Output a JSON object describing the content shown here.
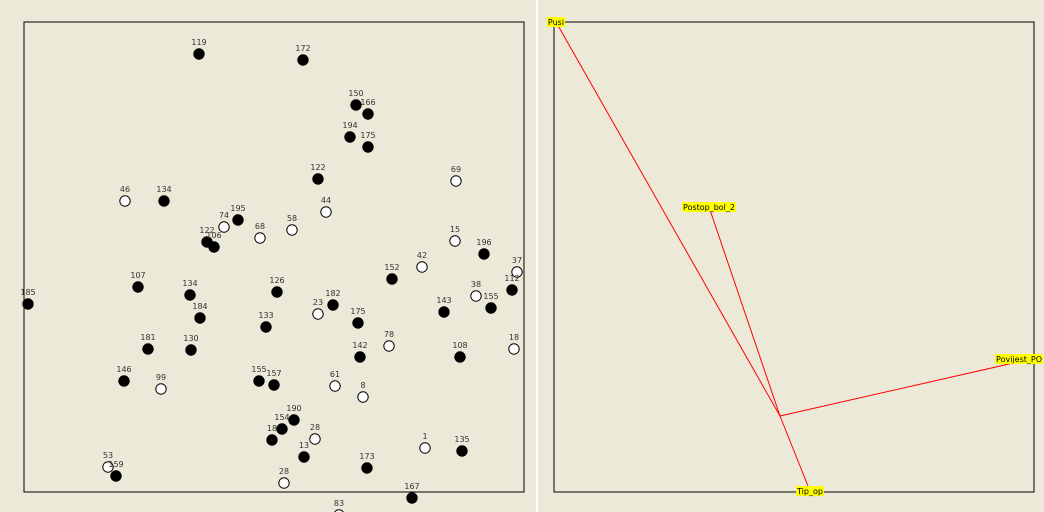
{
  "colors": {
    "panel_bg": "#ece9d8",
    "filled_point": "#000000",
    "open_point": "#ffffff",
    "vector": "#ff0000",
    "label_highlight": "#ffff00"
  },
  "chart_data": [
    {
      "type": "scatter",
      "title": "",
      "xlabel": "",
      "ylabel": "",
      "grid": false,
      "xlim": [
        0,
        500
      ],
      "ylim": [
        0,
        470
      ],
      "groups": {
        "filled": "black filled circle",
        "open": "white open circle"
      },
      "points": [
        {
          "label": "119",
          "x": 175,
          "y": 438,
          "g": "filled"
        },
        {
          "label": "172",
          "x": 279,
          "y": 432,
          "g": "filled"
        },
        {
          "label": "150",
          "x": 332,
          "y": 387,
          "g": "filled"
        },
        {
          "label": "166",
          "x": 344,
          "y": 378,
          "g": "filled"
        },
        {
          "label": "194",
          "x": 326,
          "y": 355,
          "g": "filled"
        },
        {
          "label": "175",
          "x": 344,
          "y": 345,
          "g": "filled"
        },
        {
          "label": "122",
          "x": 294,
          "y": 313,
          "g": "filled"
        },
        {
          "label": "69",
          "x": 432,
          "y": 311,
          "g": "open"
        },
        {
          "label": "46",
          "x": 101,
          "y": 291,
          "g": "open"
        },
        {
          "label": "134",
          "x": 140,
          "y": 291,
          "g": "filled"
        },
        {
          "label": "44",
          "x": 302,
          "y": 280,
          "g": "open"
        },
        {
          "label": "195",
          "x": 214,
          "y": 272,
          "g": "filled"
        },
        {
          "label": "74",
          "x": 200,
          "y": 265,
          "g": "open"
        },
        {
          "label": "68",
          "x": 236,
          "y": 254,
          "g": "open"
        },
        {
          "label": "58",
          "x": 268,
          "y": 262,
          "g": "open"
        },
        {
          "label": "122",
          "x": 183,
          "y": 250,
          "g": "filled"
        },
        {
          "label": "106",
          "x": 190,
          "y": 245,
          "g": "filled"
        },
        {
          "label": "15",
          "x": 431,
          "y": 251,
          "g": "open"
        },
        {
          "label": "196",
          "x": 460,
          "y": 238,
          "g": "filled"
        },
        {
          "label": "42",
          "x": 398,
          "y": 225,
          "g": "open"
        },
        {
          "label": "152",
          "x": 368,
          "y": 213,
          "g": "filled"
        },
        {
          "label": "37",
          "x": 493,
          "y": 220,
          "g": "open"
        },
        {
          "label": "107",
          "x": 114,
          "y": 205,
          "g": "filled"
        },
        {
          "label": "134",
          "x": 166,
          "y": 197,
          "g": "filled"
        },
        {
          "label": "184",
          "x": 176,
          "y": 174,
          "g": "filled"
        },
        {
          "label": "185",
          "x": 4,
          "y": 188,
          "g": "filled"
        },
        {
          "label": "112",
          "x": 488,
          "y": 202,
          "g": "filled"
        },
        {
          "label": "143",
          "x": 420,
          "y": 180,
          "g": "filled"
        },
        {
          "label": "38",
          "x": 452,
          "y": 196,
          "g": "open"
        },
        {
          "label": "155",
          "x": 467,
          "y": 184,
          "g": "filled"
        },
        {
          "label": "126",
          "x": 253,
          "y": 200,
          "g": "filled"
        },
        {
          "label": "23",
          "x": 294,
          "y": 178,
          "g": "open"
        },
        {
          "label": "182",
          "x": 309,
          "y": 187,
          "g": "filled"
        },
        {
          "label": "175",
          "x": 334,
          "y": 169,
          "g": "filled"
        },
        {
          "label": "78",
          "x": 365,
          "y": 146,
          "g": "open"
        },
        {
          "label": "18",
          "x": 490,
          "y": 143,
          "g": "open"
        },
        {
          "label": "108",
          "x": 436,
          "y": 135,
          "g": "filled"
        },
        {
          "label": "142",
          "x": 336,
          "y": 135,
          "g": "filled"
        },
        {
          "label": "133",
          "x": 242,
          "y": 165,
          "g": "filled"
        },
        {
          "label": "181",
          "x": 124,
          "y": 143,
          "g": "filled"
        },
        {
          "label": "130",
          "x": 167,
          "y": 142,
          "g": "filled"
        },
        {
          "label": "146",
          "x": 100,
          "y": 111,
          "g": "filled"
        },
        {
          "label": "99",
          "x": 137,
          "y": 103,
          "g": "open"
        },
        {
          "label": "155",
          "x": 235,
          "y": 111,
          "g": "filled"
        },
        {
          "label": "157",
          "x": 250,
          "y": 107,
          "g": "filled"
        },
        {
          "label": "61",
          "x": 311,
          "y": 106,
          "g": "open"
        },
        {
          "label": "8",
          "x": 339,
          "y": 95,
          "g": "open"
        },
        {
          "label": "190",
          "x": 270,
          "y": 72,
          "g": "filled"
        },
        {
          "label": "154",
          "x": 258,
          "y": 63,
          "g": "filled"
        },
        {
          "label": "18",
          "x": 248,
          "y": 52,
          "g": "filled"
        },
        {
          "label": "28",
          "x": 291,
          "y": 53,
          "g": "open"
        },
        {
          "label": "13",
          "x": 280,
          "y": 35,
          "g": "filled"
        },
        {
          "label": "1",
          "x": 401,
          "y": 44,
          "g": "open"
        },
        {
          "label": "135",
          "x": 438,
          "y": 41,
          "g": "filled"
        },
        {
          "label": "173",
          "x": 343,
          "y": 24,
          "g": "filled"
        },
        {
          "label": "53",
          "x": 84,
          "y": 25,
          "g": "open"
        },
        {
          "label": "159",
          "x": 92,
          "y": 16,
          "g": "filled"
        },
        {
          "label": "28",
          "x": 260,
          "y": 9,
          "g": "open"
        },
        {
          "label": "167",
          "x": 388,
          "y": -6,
          "g": "filled"
        },
        {
          "label": "83",
          "x": 315,
          "y": -23,
          "g": "open"
        }
      ]
    },
    {
      "type": "biplot-vectors",
      "title": "",
      "xlabel": "",
      "ylabel": "",
      "grid": false,
      "xlim": [
        0,
        480
      ],
      "ylim": [
        0,
        470
      ],
      "origin": [
        226,
        76
      ],
      "vectors": [
        {
          "name": "Pusi",
          "x": 2,
          "y": 470
        },
        {
          "name": "Postop_bol_2",
          "x": 155,
          "y": 285
        },
        {
          "name": "Povijest_PO",
          "x": 477,
          "y": 133
        },
        {
          "name": "Tip_op",
          "x": 256,
          "y": 1
        }
      ]
    }
  ]
}
